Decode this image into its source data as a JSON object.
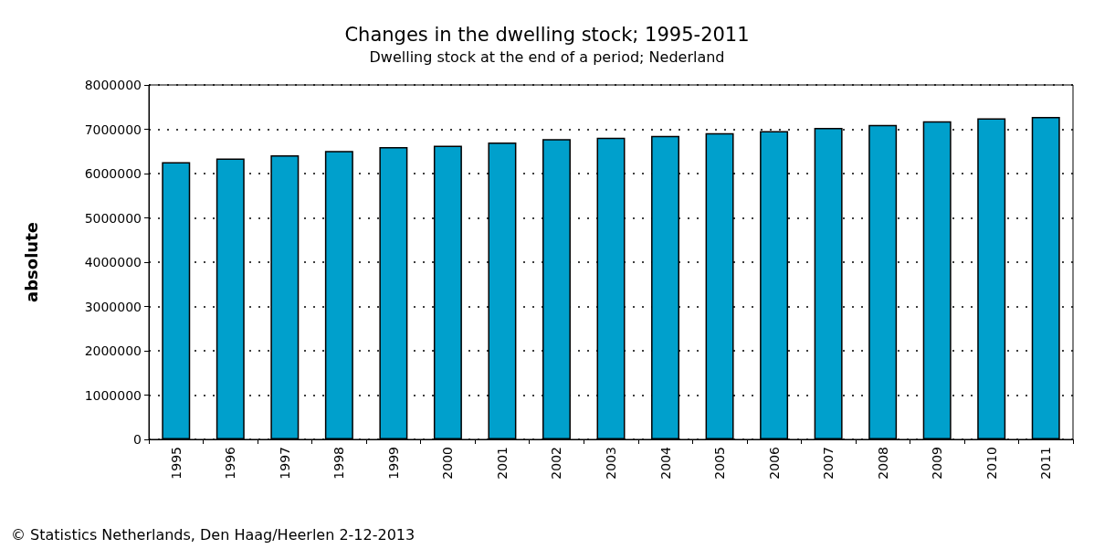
{
  "chart_data": {
    "type": "bar",
    "title": "Changes in the dwelling stock; 1995-2011",
    "subtitle": "Dwelling stock at the end of a period; Nederland",
    "ylabel": "absolute",
    "categories": [
      "1995",
      "1996",
      "1997",
      "1998",
      "1999",
      "2000",
      "2001",
      "2002",
      "2003",
      "2004",
      "2005",
      "2006",
      "2007",
      "2008",
      "2009",
      "2010",
      "2011"
    ],
    "values": [
      6260000,
      6340000,
      6410000,
      6510000,
      6600000,
      6630000,
      6700000,
      6780000,
      6810000,
      6850000,
      6910000,
      6960000,
      7030000,
      7100000,
      7180000,
      7250000,
      7280000
    ],
    "color": "#00a0cc",
    "ylim": [
      0,
      8000000
    ],
    "yticks": [
      0,
      1000000,
      2000000,
      3000000,
      4000000,
      5000000,
      6000000,
      7000000,
      8000000
    ],
    "grid": "y",
    "annotations": [
      "© Statistics Netherlands, Den Haag/Heerlen 2-12-2013"
    ]
  }
}
